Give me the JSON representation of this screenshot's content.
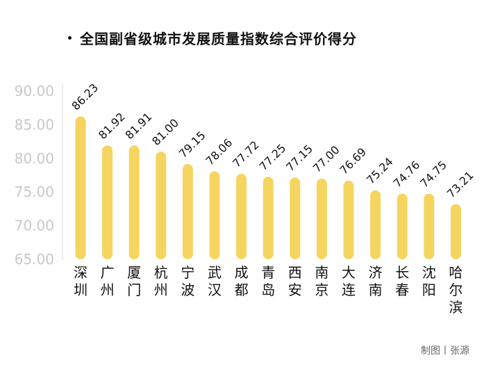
{
  "title": "全国副省级城市发展质量指数综合评价得分",
  "credit": "制图丨张源",
  "colors": {
    "bar": "#F5D560",
    "axis_tick_text": "#C8C8C8",
    "axis_line": "#D9D9D9",
    "label_text": "#111111"
  },
  "chart_data": {
    "type": "bar",
    "title": "全国副省级城市发展质量指数综合评价得分",
    "xlabel": "",
    "ylabel": "",
    "ylim": [
      65,
      90
    ],
    "yticks": [
      "90.00",
      "85.00",
      "80.00",
      "75.00",
      "70.00",
      "65.00"
    ],
    "grid": false,
    "categories": [
      "深圳",
      "广州",
      "厦门",
      "杭州",
      "宁波",
      "武汉",
      "成都",
      "青岛",
      "西安",
      "南京",
      "大连",
      "济南",
      "长春",
      "沈阳",
      "哈尔滨"
    ],
    "values": [
      86.23,
      81.92,
      81.91,
      81.0,
      79.15,
      78.06,
      77.72,
      77.25,
      77.15,
      77.0,
      76.69,
      75.24,
      74.76,
      74.75,
      73.21
    ],
    "value_labels": [
      "86.23",
      "81.92",
      "81.91",
      "81.00",
      "79.15",
      "78.06",
      "77.72",
      "77.25",
      "77.15",
      "77.00",
      "76.69",
      "75.24",
      "74.76",
      "74.75",
      "73.21"
    ]
  }
}
